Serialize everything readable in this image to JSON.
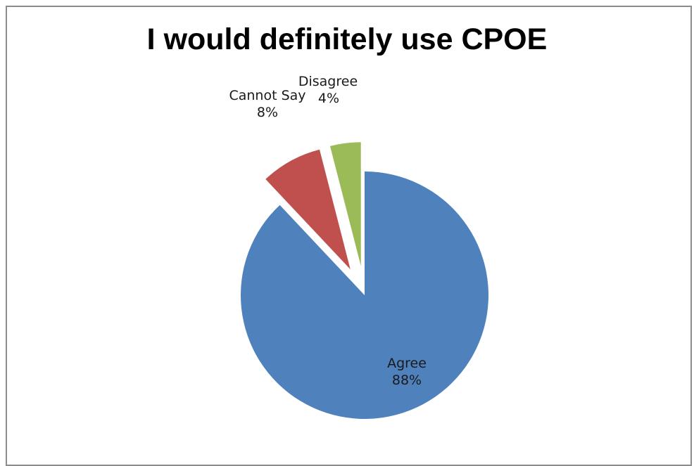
{
  "chart_data": {
    "type": "pie",
    "title": "I would definitely use CPOE",
    "categories": [
      "Agree",
      "Cannot Say",
      "Disagree"
    ],
    "values": [
      88,
      8,
      4
    ],
    "labels": [
      {
        "name": "Agree",
        "pct": "88%"
      },
      {
        "name": "Cannot Say",
        "pct": "8%"
      },
      {
        "name": "Disagree",
        "pct": "4%"
      }
    ],
    "colors": [
      "#4f81bd",
      "#c0504d",
      "#9bbb59"
    ],
    "exploded": [
      "Cannot Say",
      "Disagree"
    ],
    "legend": "none"
  }
}
